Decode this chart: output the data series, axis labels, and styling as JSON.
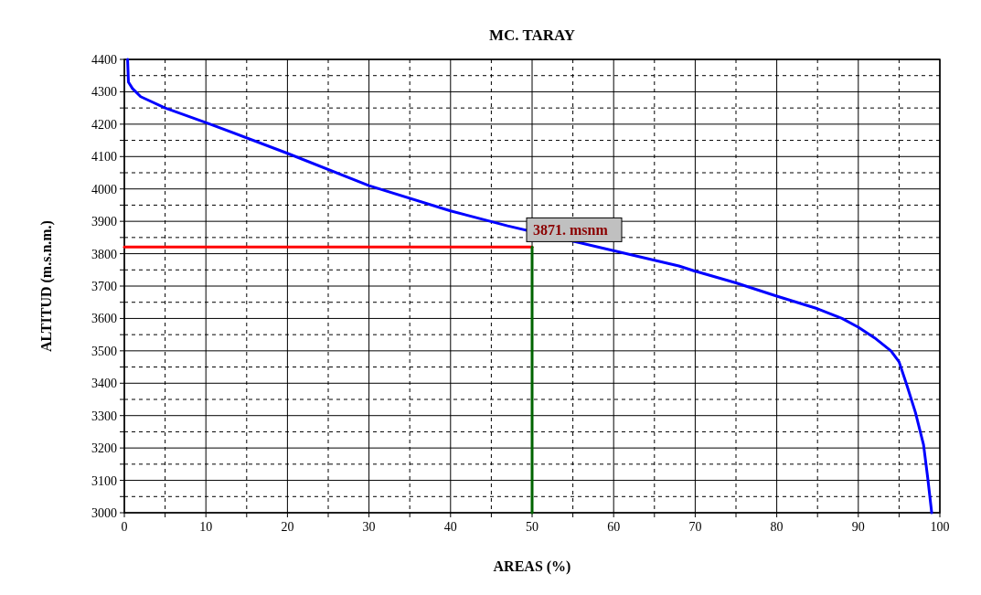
{
  "chart_data": {
    "type": "line",
    "title": "MC. TARAY",
    "xlabel": "AREAS (%)",
    "ylabel": "ALTITUD (m.s.n.m.)",
    "xlim": [
      0,
      100
    ],
    "ylim": [
      3000,
      4400
    ],
    "xticks": [
      0,
      {
        "value": 5,
        "label": null
      },
      10,
      {
        "value": 15,
        "label": null
      },
      20,
      {
        "value": 25,
        "label": null
      },
      30,
      {
        "value": 35,
        "label": null
      },
      40,
      {
        "value": 45,
        "label": null
      },
      50,
      {
        "value": 55,
        "label": null
      },
      60,
      {
        "value": 65,
        "label": null
      },
      70,
      {
        "value": 75,
        "label": null
      },
      80,
      {
        "value": 85,
        "label": null
      },
      90,
      {
        "value": 95,
        "label": null
      },
      100
    ],
    "yticks": [
      3000,
      {
        "value": 3050,
        "label": null
      },
      3100,
      {
        "value": 3150,
        "label": null
      },
      3200,
      {
        "value": 3250,
        "label": null
      },
      3300,
      {
        "value": 3350,
        "label": null
      },
      3400,
      {
        "value": 3450,
        "label": null
      },
      3500,
      {
        "value": 3550,
        "label": null
      },
      3600,
      {
        "value": 3650,
        "label": null
      },
      3700,
      {
        "value": 3750,
        "label": null
      },
      3800,
      {
        "value": 3850,
        "label": null
      },
      3900,
      {
        "value": 3950,
        "label": null
      },
      4000,
      {
        "value": 4050,
        "label": null
      },
      4100,
      {
        "value": 4150,
        "label": null
      },
      4200,
      {
        "value": 4250,
        "label": null
      },
      4300,
      {
        "value": 4350,
        "label": null
      },
      4400
    ],
    "grid": true,
    "marker": "none",
    "line_style": "solid",
    "series": [
      {
        "color": "#0000ff",
        "x": [
          0.4,
          0.5,
          1,
          2,
          5,
          10,
          20,
          30,
          40,
          47,
          68,
          70,
          75,
          80,
          85,
          88,
          90,
          92,
          94,
          95,
          96,
          97,
          98,
          98.5,
          99
        ],
        "values": [
          4400,
          4330,
          4310,
          4285,
          4250,
          4205,
          4110,
          4010,
          3932,
          3886,
          3762,
          3746,
          3710,
          3669,
          3630,
          3600,
          3573,
          3540,
          3500,
          3466,
          3390,
          3310,
          3210,
          3110,
          3000
        ]
      },
      {
        "color": "#ff0000",
        "x": [
          0,
          50
        ],
        "values": [
          3821,
          3821
        ]
      },
      {
        "color": "#006400",
        "x": [
          50,
          50
        ],
        "values": [
          3000,
          3821
        ]
      }
    ],
    "annotations": [
      {
        "text": "3871. msnm",
        "x": 50,
        "y": 3871
      }
    ]
  }
}
